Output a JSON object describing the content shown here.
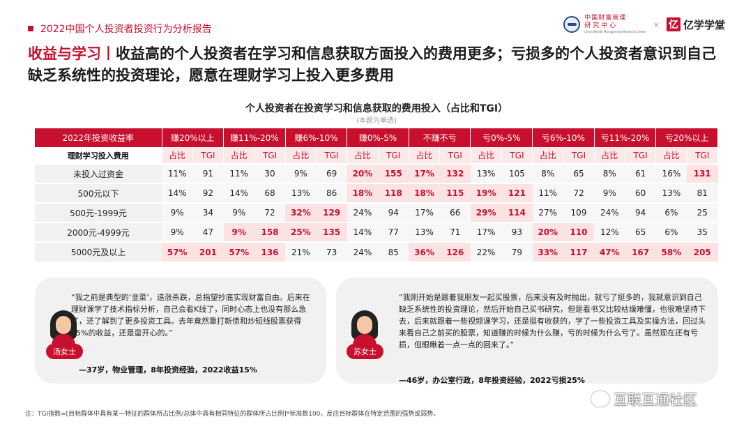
{
  "header": {
    "report_title": "2022中国个人投资者投资行为分析报告",
    "logo1_line1": "中国财富管理",
    "logo1_line2": "研究中心",
    "logo1_en": "China Wealth Management Research Center",
    "logo_separator": "×",
    "logo2_mark": "亿",
    "logo2_text": "亿学学堂"
  },
  "headline": {
    "tag": "收益与学习丨",
    "text": "收益高的个人投资者在学习和信息获取方面投入的费用更多；亏损多的个人投资者意识到自己缺乏系统性的投资理论，愿意在理财学习上投入更多费用"
  },
  "chart": {
    "title": "个人投资者在投资学习和信息获取的费用投入（占比和TGI）",
    "subtitle": "(本题为单选)"
  },
  "chart_data": {
    "type": "table",
    "corner_label": "2022年投资收益率",
    "row_header_label": "理财学习投入费用",
    "groups": [
      "赚20%以上",
      "赚11%-20%",
      "赚6%-10%",
      "赚0%-5%",
      "不赚不亏",
      "亏0%-5%",
      "亏6%-10%",
      "亏11%-20%",
      "亏20%以上"
    ],
    "subcolumns": [
      "占比",
      "TGI"
    ],
    "rows": [
      {
        "label": "未投入过资金",
        "values": [
          "11%",
          "91",
          "11%",
          "30",
          "9%",
          "69",
          "20%",
          "155",
          "17%",
          "132",
          "13%",
          "105",
          "8%",
          "65",
          "8%",
          "61",
          "16%",
          "131"
        ],
        "highlight": [
          6,
          7,
          8,
          9,
          17
        ]
      },
      {
        "label": "500元以下",
        "values": [
          "14%",
          "92",
          "14%",
          "68",
          "13%",
          "86",
          "18%",
          "118",
          "18%",
          "115",
          "19%",
          "121",
          "11%",
          "72",
          "9%",
          "60",
          "13%",
          "81"
        ],
        "highlight": [
          6,
          7,
          8,
          9,
          10,
          11
        ]
      },
      {
        "label": "500元-1999元",
        "values": [
          "9%",
          "34",
          "9%",
          "72",
          "32%",
          "129",
          "24%",
          "94",
          "17%",
          "66",
          "29%",
          "114",
          "27%",
          "109",
          "24%",
          "94",
          "6%",
          "25"
        ],
        "highlight": [
          4,
          5,
          10,
          11
        ]
      },
      {
        "label": "2000元-4999元",
        "values": [
          "9%",
          "47",
          "9%",
          "158",
          "25%",
          "135",
          "14%",
          "77",
          "13%",
          "71",
          "17%",
          "93",
          "20%",
          "110",
          "12%",
          "65",
          "6%",
          "35"
        ],
        "highlight": [
          2,
          3,
          4,
          5,
          12,
          13
        ]
      },
      {
        "label": "5000元及以上",
        "values": [
          "57%",
          "201",
          "57%",
          "136",
          "21%",
          "73",
          "24%",
          "85",
          "36%",
          "126",
          "22%",
          "79",
          "33%",
          "117",
          "47%",
          "167",
          "58%",
          "205"
        ],
        "highlight": [
          0,
          1,
          2,
          3,
          8,
          9,
          12,
          13,
          14,
          15,
          16,
          17
        ]
      }
    ]
  },
  "quotes": [
    {
      "name": "汤女士",
      "text": "“我之前是典型的‘韭菜’，追涨杀跌，总指望抄底实现财富自由。后来在理财课学了技术指标分析，自己会看K线了，同时心态上也没有那么急了，还了解到了更多投资工具。去年竟然靠打新债和炒短线股票获得15%的收益，还是蛮开心的。”",
      "attribution": "—37岁，物业管理，8年投资经验，2022收益15%"
    },
    {
      "name": "苏女士",
      "text": "“我刚开始是跟着我朋友一起买股票，后来没有及时抛出，就亏了挺多的，我就意识到自己缺乏系统性的投资理论，然后开始自己买书研究，但是看书又比较枯燥难懂，也很难坚持下去，后来就跟着一些视频课学习，还是挺有收获的，学了一些投资工具及实操方法，回过头来看自己之前买的股票，知道赚的时候为什么赚，亏的时候为什么亏了。虽然现在还有亏损，但眼瞅着一点一点的回来了。”",
      "attribution": "—46岁，办公室行政，8年投资经验，2022亏损25%"
    }
  ],
  "footer": {
    "note": "注：TGI指数=[目标群体中具有某一特征的群体所占比例/总体中具有相同特征的群体所占比例]*标准数100，反应目标群体在特定范围的强势或弱势。"
  },
  "watermark": {
    "text": "互联互通社区"
  }
}
